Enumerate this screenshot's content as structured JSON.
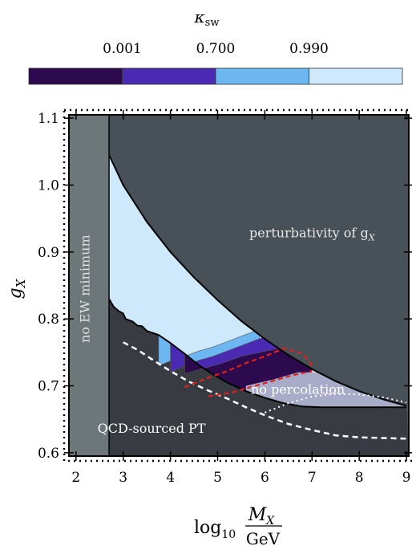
{
  "chart_data": {
    "type": "area",
    "colorbar": {
      "title_main": "κ",
      "title_sub": "sw",
      "tick_labels": [
        "0.001",
        "0.700",
        "0.990"
      ],
      "bins": [
        {
          "color": "#2d0a4e"
        },
        {
          "color": "#4b2ab3"
        },
        {
          "color": "#6cb6f2"
        },
        {
          "color": "#cde9fb"
        }
      ]
    },
    "x_axis": {
      "label_main": "log",
      "label_sub": "10",
      "frac_num_main": "M",
      "frac_num_sub": "X",
      "frac_den": "GeV",
      "range": [
        1.85,
        9.05
      ],
      "ticks": [
        2,
        3,
        4,
        5,
        6,
        7,
        8,
        9
      ],
      "tick_labels": [
        "2",
        "3",
        "4",
        "5",
        "6",
        "7",
        "8",
        "9"
      ]
    },
    "y_axis": {
      "label_main": "g",
      "label_sub": "X",
      "range": [
        0.595,
        1.105
      ],
      "ticks": [
        0.6,
        0.7,
        0.8,
        0.9,
        1.0,
        1.1
      ],
      "tick_labels": [
        "0.6",
        "0.7",
        "0.8",
        "0.9",
        "1.0",
        "1.1"
      ]
    },
    "colors": {
      "excluded_dark": "#485058",
      "lower_dark": "#383c42",
      "ew_band": "#6d7679",
      "no_percolation": "#a8acc8",
      "kappa_0": "#2d0a4e",
      "kappa_1": "#4b2ab3",
      "kappa_2": "#6cb6f2",
      "kappa_3": "#cde9fb",
      "contour_red": "#e02020"
    },
    "regions": {
      "ew_edge_x": 2.7,
      "perturbativity_boundary": [
        [
          2.7,
          1.045
        ],
        [
          3.0,
          1.0
        ],
        [
          3.5,
          0.945
        ],
        [
          4.0,
          0.9
        ],
        [
          4.5,
          0.862
        ],
        [
          5.0,
          0.828
        ],
        [
          5.5,
          0.797
        ],
        [
          6.0,
          0.77
        ],
        [
          6.5,
          0.746
        ],
        [
          7.0,
          0.725
        ],
        [
          7.5,
          0.707
        ],
        [
          8.0,
          0.692
        ],
        [
          8.5,
          0.68
        ],
        [
          9.0,
          0.67
        ]
      ],
      "lower_boundary": [
        [
          2.7,
          0.83
        ],
        [
          2.8,
          0.818
        ],
        [
          2.9,
          0.812
        ],
        [
          3.0,
          0.808
        ],
        [
          3.05,
          0.8
        ],
        [
          3.2,
          0.796
        ],
        [
          3.3,
          0.79
        ],
        [
          3.4,
          0.789
        ],
        [
          3.5,
          0.782
        ],
        [
          3.75,
          0.776
        ],
        [
          4.0,
          0.764
        ],
        [
          4.3,
          0.748
        ],
        [
          4.6,
          0.731
        ],
        [
          4.9,
          0.717
        ],
        [
          5.2,
          0.705
        ],
        [
          5.6,
          0.692
        ],
        [
          6.0,
          0.682
        ],
        [
          6.4,
          0.674
        ],
        [
          6.8,
          0.669
        ],
        [
          7.2,
          0.668
        ],
        [
          7.6,
          0.668
        ],
        [
          8.0,
          0.668
        ],
        [
          9.0,
          0.668
        ]
      ],
      "no_percolation_region": [
        [
          6.7,
          0.72
        ],
        [
          7.6,
          0.72
        ],
        [
          8.0,
          0.702
        ],
        [
          8.5,
          0.683
        ],
        [
          9.0,
          0.67
        ],
        [
          9.0,
          0.668
        ],
        [
          6.9,
          0.668
        ],
        [
          6.5,
          0.672
        ],
        [
          6.0,
          0.682
        ],
        [
          5.6,
          0.692
        ],
        [
          5.6,
          0.7
        ],
        [
          6.2,
          0.71
        ]
      ],
      "kappa_levels": [
        {
          "level": 2,
          "boundary": [
            [
              3.75,
              0.73
            ],
            [
              4.0,
              0.737
            ],
            [
              4.3,
              0.744
            ],
            [
              4.6,
              0.752
            ],
            [
              4.9,
              0.758
            ],
            [
              5.2,
              0.766
            ],
            [
              5.5,
              0.774
            ],
            [
              5.8,
              0.782
            ],
            [
              5.95,
              0.79
            ]
          ]
        },
        {
          "level": 1,
          "boundary": [
            [
              4.0,
              0.72
            ],
            [
              4.3,
              0.73
            ],
            [
              4.6,
              0.738
            ],
            [
              4.9,
              0.744
            ],
            [
              5.2,
              0.752
            ],
            [
              5.5,
              0.76
            ],
            [
              5.8,
              0.768
            ],
            [
              6.1,
              0.776
            ],
            [
              6.35,
              0.768
            ]
          ]
        },
        {
          "level": 0,
          "boundary": [
            [
              4.3,
              0.718
            ],
            [
              4.7,
              0.726
            ],
            [
              5.1,
              0.734
            ],
            [
              5.5,
              0.744
            ],
            [
              5.9,
              0.75
            ],
            [
              6.3,
              0.756
            ],
            [
              6.7,
              0.746
            ],
            [
              7.0,
              0.725
            ]
          ]
        }
      ],
      "dotted_line": [
        [
          6.0,
          0.66
        ],
        [
          6.5,
          0.674
        ],
        [
          7.0,
          0.684
        ],
        [
          7.5,
          0.688
        ],
        [
          8.0,
          0.687
        ],
        [
          8.5,
          0.683
        ],
        [
          9.0,
          0.675
        ]
      ],
      "dashed_line": [
        [
          3.0,
          0.765
        ],
        [
          3.3,
          0.754
        ],
        [
          3.6,
          0.74
        ],
        [
          4.0,
          0.722
        ],
        [
          4.4,
          0.706
        ],
        [
          4.8,
          0.693
        ],
        [
          5.2,
          0.681
        ],
        [
          5.6,
          0.668
        ],
        [
          6.0,
          0.656
        ],
        [
          6.5,
          0.643
        ],
        [
          7.0,
          0.634
        ],
        [
          7.5,
          0.626
        ],
        [
          8.0,
          0.623
        ],
        [
          8.5,
          0.622
        ],
        [
          9.0,
          0.621
        ]
      ],
      "red_contour_1": [
        [
          4.3,
          0.698
        ],
        [
          4.8,
          0.712
        ],
        [
          5.2,
          0.722
        ],
        [
          5.6,
          0.734
        ],
        [
          6.0,
          0.744
        ],
        [
          6.4,
          0.756
        ],
        [
          6.8,
          0.748
        ],
        [
          7.0,
          0.73
        ]
      ],
      "red_contour_2": [
        [
          4.8,
          0.684
        ],
        [
          5.3,
          0.69
        ],
        [
          5.8,
          0.7
        ],
        [
          6.2,
          0.708
        ],
        [
          6.6,
          0.716
        ],
        [
          7.0,
          0.722
        ]
      ]
    },
    "annotations": [
      {
        "id": "perturbativity",
        "text_main": "perturbativity of g",
        "text_sub": "X",
        "x": 7.0,
        "y": 0.922,
        "color": "#e8e8e8"
      },
      {
        "id": "no-percolation",
        "text_main": "no percolation",
        "x": 6.7,
        "y": 0.688,
        "color": "#ffffff"
      },
      {
        "id": "qcd",
        "text_main": "QCD-sourced PT",
        "x": 3.6,
        "y": 0.63,
        "color": "#ffffff"
      },
      {
        "id": "no-ew",
        "text_main": "no EW minimum",
        "x": 2.28,
        "y": 0.845,
        "color": "#e0e0e0",
        "rotate": -90
      }
    ]
  }
}
